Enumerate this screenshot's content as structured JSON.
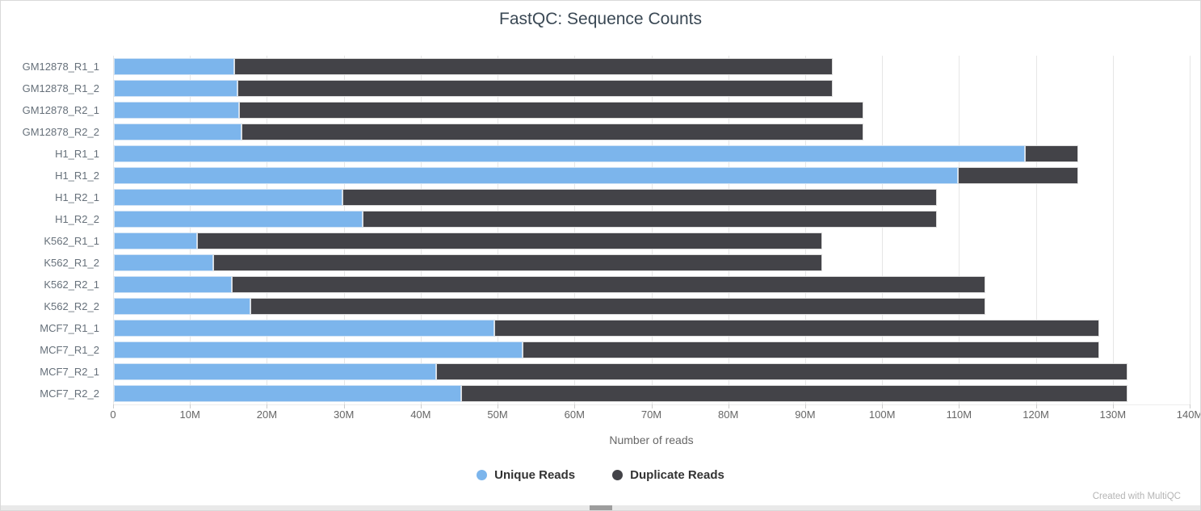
{
  "title": "FastQC: Sequence Counts",
  "credit": "Created with MultiQC",
  "colors": {
    "unique": "#7cb5ec",
    "duplicate": "#434348",
    "grid": "#e6e6e6",
    "tick_text": "#666666",
    "axis_title_text": "#666666",
    "title_text": "#3a4854",
    "legend_text": "#333333",
    "credit_text": "#b4b4b4",
    "background": "#ffffff"
  },
  "legend": {
    "items": [
      {
        "label": "Unique Reads",
        "color": "#7cb5ec"
      },
      {
        "label": "Duplicate Reads",
        "color": "#434348"
      }
    ]
  },
  "chart_data": {
    "type": "bar",
    "orientation": "horizontal",
    "stacked": true,
    "title": "FastQC: Sequence Counts",
    "xlabel": "Number of reads",
    "ylabel": "",
    "xlim_millions": [
      0,
      140
    ],
    "grid": true,
    "legend_position": "bottom",
    "x_ticks": [
      {
        "value_millions": 0,
        "label": "0"
      },
      {
        "value_millions": 10,
        "label": "10M"
      },
      {
        "value_millions": 20,
        "label": "20M"
      },
      {
        "value_millions": 30,
        "label": "30M"
      },
      {
        "value_millions": 40,
        "label": "40M"
      },
      {
        "value_millions": 50,
        "label": "50M"
      },
      {
        "value_millions": 60,
        "label": "60M"
      },
      {
        "value_millions": 70,
        "label": "70M"
      },
      {
        "value_millions": 80,
        "label": "80M"
      },
      {
        "value_millions": 90,
        "label": "90M"
      },
      {
        "value_millions": 100,
        "label": "100M"
      },
      {
        "value_millions": 110,
        "label": "110M"
      },
      {
        "value_millions": 120,
        "label": "120M"
      },
      {
        "value_millions": 130,
        "label": "130M"
      },
      {
        "value_millions": 140,
        "label": "140M"
      }
    ],
    "categories": [
      "GM12878_R1_1",
      "GM12878_R1_2",
      "GM12878_R2_1",
      "GM12878_R2_2",
      "H1_R1_1",
      "H1_R1_2",
      "H1_R2_1",
      "H1_R2_2",
      "K562_R1_1",
      "K562_R1_2",
      "K562_R2_1",
      "K562_R2_2",
      "MCF7_R1_1",
      "MCF7_R1_2",
      "MCF7_R2_1",
      "MCF7_R2_2"
    ],
    "series": [
      {
        "name": "Unique Reads",
        "color": "#7cb5ec",
        "values_millions": [
          15.6,
          16.1,
          16.3,
          16.6,
          118.5,
          109.8,
          29.7,
          32.4,
          10.8,
          12.9,
          15.3,
          17.7,
          49.5,
          53.1,
          41.9,
          45.2
        ]
      },
      {
        "name": "Duplicate Reads",
        "color": "#434348",
        "values_millions": [
          77.9,
          77.4,
          81.2,
          80.9,
          6.9,
          15.6,
          77.3,
          74.6,
          81.3,
          79.2,
          98.0,
          95.6,
          78.6,
          75.0,
          89.9,
          86.6
        ]
      }
    ]
  }
}
